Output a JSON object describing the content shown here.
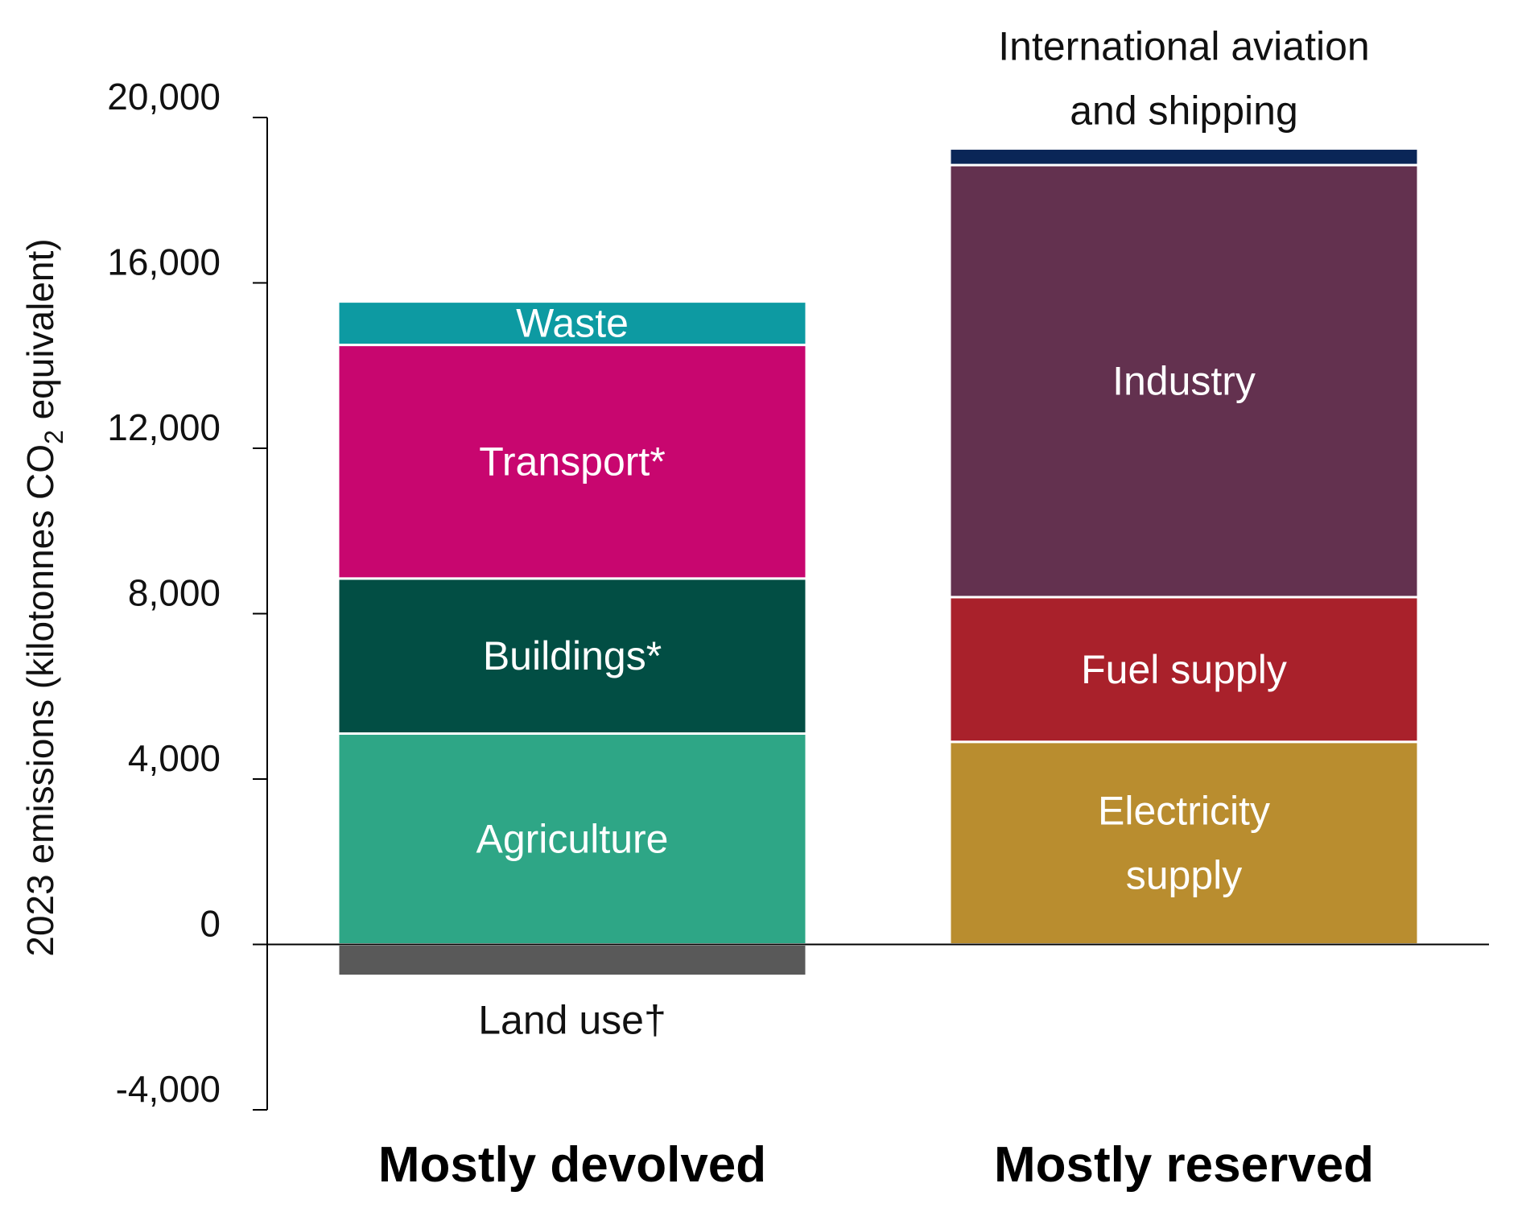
{
  "chart_data": {
    "type": "bar",
    "stacked": true,
    "title": "",
    "ylabel": "2023 emissions (kilotonnes CO",
    "ylabel_subscript": "2",
    "ylabel_suffix": " equivalent)",
    "ylim": [
      -4000,
      20000
    ],
    "yticks": [
      -4000,
      0,
      4000,
      8000,
      12000,
      16000,
      20000
    ],
    "ytick_labels": [
      "-4,000",
      "0",
      "4,000",
      "8,000",
      "12,000",
      "16,000",
      "20,000"
    ],
    "grid": false,
    "legend": "none",
    "categories": [
      "Mostly devolved",
      "Mostly reserved"
    ],
    "series": [
      {
        "name": "Land use†",
        "category": "Mostly devolved",
        "value": -760,
        "color": "#595959",
        "label_color": "#111111",
        "label_position": "below"
      },
      {
        "name": "Agriculture",
        "category": "Mostly devolved",
        "value": 5100,
        "color": "#2ea686",
        "label_color": "#ffffff",
        "label_position": "inside"
      },
      {
        "name": "Buildings*",
        "category": "Mostly devolved",
        "value": 3750,
        "color": "#024e44",
        "label_color": "#ffffff",
        "label_position": "inside"
      },
      {
        "name": "Transport*",
        "category": "Mostly devolved",
        "value": 5650,
        "color": "#c8066f",
        "label_color": "#ffffff",
        "label_position": "inside"
      },
      {
        "name": "Waste",
        "category": "Mostly devolved",
        "value": 1050,
        "color": "#0d9aa2",
        "label_color": "#ffffff",
        "label_position": "inside"
      },
      {
        "name": "Electricity supply",
        "category": "Mostly reserved",
        "value": 4900,
        "color": "#b98d2f",
        "label_color": "#ffffff",
        "label_position": "inside"
      },
      {
        "name": "Fuel supply",
        "category": "Mostly reserved",
        "value": 3500,
        "color": "#a9212b",
        "label_color": "#ffffff",
        "label_position": "inside"
      },
      {
        "name": "Industry",
        "category": "Mostly reserved",
        "value": 10450,
        "color": "#63314f",
        "label_color": "#ffffff",
        "label_position": "inside"
      },
      {
        "name": "International aviation and shipping",
        "category": "Mostly reserved",
        "value": 400,
        "color": "#0a2657",
        "label_color": "#111111",
        "label_position": "above"
      }
    ]
  }
}
